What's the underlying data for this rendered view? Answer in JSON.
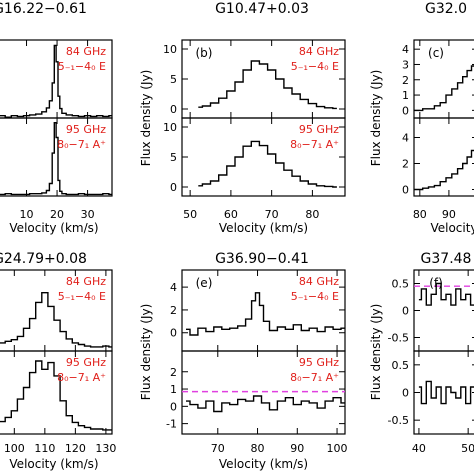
{
  "colors": {
    "axis": "#000000",
    "trace": "#000000",
    "label_red": "#e0201b",
    "dash_magenta": "#e040e0"
  },
  "chart_data": [
    {
      "id": "a",
      "panel_letter": "",
      "title": "G16.22−0.61",
      "type": "line",
      "xlim": [
        0,
        38
      ],
      "xticks": [
        10,
        20,
        30
      ],
      "xlabel": "Velocity (km/s)",
      "top": {
        "label_freq": "84 GHz",
        "label_trans": "5₋₁−4₀ E",
        "ylim": [
          0,
          1
        ],
        "yticks": [],
        "x": [
          0,
          2,
          4,
          6,
          8,
          10,
          12,
          14,
          16,
          17,
          18,
          18.8,
          19.4,
          20,
          20.6,
          21.2,
          22,
          24,
          26,
          28,
          30,
          32,
          34,
          36,
          38
        ],
        "y": [
          0.02,
          0.03,
          0.01,
          0.03,
          0.02,
          0.03,
          0.04,
          0.05,
          0.08,
          0.13,
          0.22,
          0.45,
          0.93,
          0.72,
          0.28,
          0.12,
          0.06,
          0.04,
          0.03,
          0.02,
          0.03,
          0.02,
          0.03,
          0.02,
          0.03
        ]
      },
      "bottom": {
        "label_freq": "95 GHz",
        "label_trans": "8₀−7₁ A⁺",
        "ylim": [
          0,
          1
        ],
        "yticks": [],
        "x": [
          0,
          2,
          4,
          6,
          8,
          10,
          12,
          14,
          16,
          17,
          18,
          18.8,
          19.4,
          20,
          20.6,
          21.2,
          22,
          24,
          26,
          28,
          30,
          32,
          34,
          36,
          38
        ],
        "y": [
          0.02,
          0.02,
          0.03,
          0.02,
          0.02,
          0.02,
          0.03,
          0.03,
          0.04,
          0.07,
          0.16,
          0.55,
          0.94,
          0.75,
          0.2,
          0.06,
          0.03,
          0.02,
          0.02,
          0.03,
          0.02,
          0.02,
          0.02,
          0.03,
          0.02
        ]
      }
    },
    {
      "id": "b",
      "panel_letter": "(b)",
      "title": "G10.47+0.03",
      "type": "line",
      "xlim": [
        48,
        88
      ],
      "xticks": [
        50,
        60,
        70,
        80
      ],
      "xlabel": "Velocity (km/s)",
      "ylabel": "Flux density  (Jy)",
      "top": {
        "label_freq": "84 GHz",
        "label_trans": "5₋₁−4₀ E",
        "ylim": [
          -1.5,
          11.5
        ],
        "yticks": [
          0,
          5,
          10
        ],
        "x": [
          52,
          54,
          56,
          58,
          60,
          62,
          64,
          66,
          68,
          70,
          72,
          74,
          76,
          78,
          80,
          82,
          84,
          86
        ],
        "y": [
          0.3,
          0.5,
          1,
          1.8,
          3,
          4.5,
          6.5,
          8,
          7.5,
          6.5,
          5,
          3.5,
          2.5,
          1.6,
          0.9,
          0.4,
          0.2,
          0.1
        ]
      },
      "bottom": {
        "label_freq": "95 GHz",
        "label_trans": "8₀−7₁ A⁺",
        "ylim": [
          -1.5,
          11.5
        ],
        "yticks": [
          0,
          5,
          10
        ],
        "x": [
          52,
          54,
          56,
          58,
          60,
          62,
          64,
          66,
          68,
          70,
          72,
          74,
          76,
          78,
          80,
          82,
          84,
          86
        ],
        "y": [
          0.2,
          0.5,
          1,
          2,
          3.5,
          5,
          6.8,
          7.6,
          6.9,
          5.5,
          4,
          2.8,
          1.8,
          1,
          0.5,
          0.2,
          0.1,
          0
        ]
      }
    },
    {
      "id": "c",
      "panel_letter": "(c)",
      "title": "G32.0",
      "type": "line",
      "xlim": [
        78,
        100
      ],
      "xticks": [
        80,
        90
      ],
      "xlabel": "Velocity",
      "ylabel": "Flux density  (Jy)",
      "top": {
        "label_freq": "",
        "label_trans": "",
        "ylim": [
          -0.5,
          4.6
        ],
        "yticks": [
          0,
          1,
          2,
          3,
          4
        ],
        "x": [
          78,
          80,
          82,
          84,
          86,
          88,
          90,
          92,
          94,
          95.5,
          97,
          98.5,
          100
        ],
        "y": [
          0,
          0,
          0.1,
          0.1,
          0.3,
          0.5,
          1,
          1.4,
          1.8,
          2.2,
          2.6,
          2.9,
          3.1
        ]
      },
      "bottom": {
        "label_freq": "",
        "label_trans": "",
        "ylim": [
          -0.5,
          5.5
        ],
        "yticks": [
          0,
          2,
          4
        ],
        "x": [
          78,
          80,
          82,
          84,
          86,
          88,
          90,
          92,
          94,
          95.5,
          97,
          98.5,
          100
        ],
        "y": [
          0,
          0,
          0.1,
          0.2,
          0.3,
          0.6,
          0.9,
          1.2,
          1.6,
          2,
          2.5,
          3,
          3.5
        ]
      }
    },
    {
      "id": "d",
      "panel_letter": "",
      "title": "G24.79+0.08",
      "type": "line",
      "xlim": [
        94,
        132
      ],
      "xticks": [
        100,
        110,
        120,
        130
      ],
      "xlabel": "Velocity (km/s)",
      "top": {
        "label_freq": "84 GHz",
        "label_trans": "5₋₁−4₀ E",
        "ylim": [
          0,
          1
        ],
        "yticks": [],
        "x": [
          94,
          96,
          98,
          100,
          102,
          104,
          106,
          108,
          110,
          112,
          114,
          116,
          118,
          120,
          122,
          124,
          126,
          128,
          130,
          132
        ],
        "y": [
          0.08,
          0.1,
          0.12,
          0.14,
          0.18,
          0.28,
          0.4,
          0.6,
          0.72,
          0.55,
          0.38,
          0.24,
          0.15,
          0.1,
          0.08,
          0.06,
          0.05,
          0.05,
          0.06,
          0.05
        ]
      },
      "bottom": {
        "label_freq": "95 GHz",
        "label_trans": "8₀−7₁ A⁺",
        "ylim": [
          0,
          1
        ],
        "yticks": [],
        "x": [
          94,
          96,
          98,
          100,
          102,
          104,
          106,
          108,
          110,
          112,
          114,
          116,
          118,
          120,
          122,
          124,
          126,
          128,
          130,
          132
        ],
        "y": [
          0.1,
          0.15,
          0.2,
          0.28,
          0.42,
          0.56,
          0.74,
          0.88,
          0.78,
          0.86,
          0.7,
          0.4,
          0.22,
          0.14,
          0.1,
          0.08,
          0.06,
          0.06,
          0.05,
          0.05
        ]
      }
    },
    {
      "id": "e",
      "panel_letter": "(e)",
      "title": "G36.90−0.41",
      "type": "line",
      "xlim": [
        61,
        102
      ],
      "xticks": [
        70,
        80,
        90,
        100
      ],
      "xlabel": "Velocity (km/s)",
      "ylabel": "Flux density  (Jy)",
      "top": {
        "label_freq": "84 GHz",
        "label_trans": "5₋₁−4₀ E",
        "ylim": [
          -1.6,
          5.5
        ],
        "yticks": [
          0,
          2,
          4
        ],
        "x": [
          62,
          64,
          66,
          68,
          70,
          72,
          74,
          76,
          78,
          79,
          80,
          81,
          82,
          84,
          86,
          88,
          90,
          92,
          94,
          96,
          98,
          100,
          102
        ],
        "y": [
          0.3,
          -0.2,
          0.4,
          0.1,
          0.5,
          0.3,
          0.4,
          0.6,
          1.2,
          2.8,
          3.5,
          2.4,
          1,
          0.2,
          0.5,
          0.3,
          0.7,
          0.2,
          0.4,
          0.1,
          0.5,
          0.3,
          0.4
        ]
      },
      "bottom": {
        "label_freq": "95 GHz",
        "label_trans": "8₀−7₁ A⁺",
        "ylim": [
          -1.6,
          3.2
        ],
        "yticks": [
          -1,
          0,
          1,
          2
        ],
        "dashed_y": 0.85,
        "x": [
          62,
          64,
          66,
          68,
          70,
          72,
          74,
          76,
          78,
          80,
          82,
          84,
          86,
          88,
          90,
          92,
          94,
          96,
          98,
          100,
          102
        ],
        "y": [
          0.3,
          0.1,
          -0.1,
          0.3,
          -0.3,
          0.2,
          0.1,
          0.4,
          0.3,
          0.6,
          0.2,
          -0.2,
          0.3,
          0.5,
          0.1,
          0.3,
          0.2,
          -0.1,
          0.3,
          0.5,
          0.2
        ]
      }
    },
    {
      "id": "f",
      "panel_letter": "(f)",
      "title": "G37.48",
      "type": "line",
      "xlim": [
        39,
        52
      ],
      "xticks": [
        40,
        50
      ],
      "xlabel": "",
      "ylabel": "Flux density  (Jy)",
      "top": {
        "label_freq": "",
        "label_trans": "",
        "ylim": [
          -0.75,
          0.75
        ],
        "yticks": [
          -0.5,
          0,
          0.5
        ],
        "dashed_y": 0.45,
        "x": [
          40,
          41,
          42,
          43,
          44,
          45,
          46,
          47,
          48,
          49,
          50,
          51,
          52
        ],
        "y": [
          0.2,
          0.4,
          0.1,
          0.3,
          0.5,
          0.2,
          0.3,
          0.1,
          0.4,
          0.2,
          0.3,
          0.1,
          0.2
        ]
      },
      "bottom": {
        "label_freq": "",
        "label_trans": "",
        "ylim": [
          -0.75,
          0.75
        ],
        "yticks": [
          -0.5,
          0,
          0.5
        ],
        "x": [
          40,
          41,
          42,
          43,
          44,
          45,
          46,
          47,
          48,
          49,
          50,
          51,
          52
        ],
        "y": [
          0.1,
          -0.2,
          0.2,
          -0.1,
          0.1,
          -0.2,
          0.1,
          0,
          -0.1,
          0.1,
          -0.2,
          0.1,
          0
        ]
      }
    }
  ]
}
